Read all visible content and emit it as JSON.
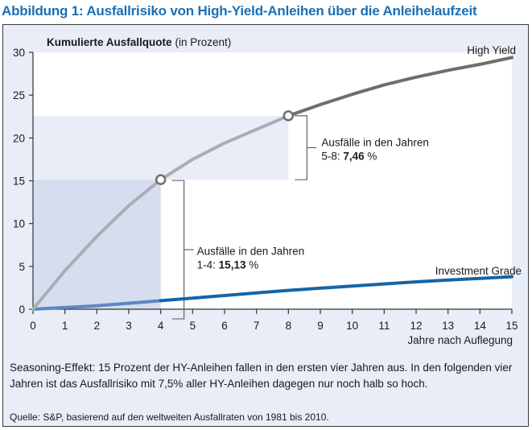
{
  "figure": {
    "title": "Abbildung 1: Ausfallrisiko von High-Yield-Anleihen über die Anleihelaufzeit",
    "caption": "Seasoning-Effekt: 15 Prozent der HY-Anleihen fallen in den ersten vier Jahren aus. In den folgenden vier Jahren ist das Ausfallrisiko mit 7,5% aller HY-Anleihen dagegen nur noch halb so hoch.",
    "source": "Quelle: S&P, basierend auf den weltweiten Ausfallraten von 1981 bis 2010."
  },
  "chart_data": {
    "type": "line",
    "title": "Kumulierte Ausfallquote",
    "title_suffix": "(in Prozent)",
    "xlabel": "Jahre nach Auflegung",
    "ylabel": "Kumulierte Ausfallquote (in Prozent)",
    "x": [
      0,
      1,
      2,
      3,
      4,
      5,
      6,
      7,
      8,
      9,
      10,
      11,
      12,
      13,
      14,
      15
    ],
    "x_ticks": [
      "0",
      "1",
      "2",
      "3",
      "4",
      "5",
      "6",
      "7",
      "8",
      "9",
      "10",
      "11",
      "12",
      "13",
      "14",
      "15"
    ],
    "y_ticks": [
      "0",
      "5",
      "10",
      "15",
      "20",
      "25",
      "30"
    ],
    "xlim": [
      0,
      15
    ],
    "ylim": [
      0,
      30
    ],
    "grid": false,
    "series": [
      {
        "name": "High Yield",
        "color": "#6e6e6e",
        "color_highlight": "#a9adb5",
        "values": [
          0,
          4.5,
          8.5,
          12.1,
          15.13,
          17.5,
          19.4,
          21.0,
          22.59,
          23.9,
          25.1,
          26.2,
          27.1,
          27.9,
          28.6,
          29.4
        ]
      },
      {
        "name": "Investment Grade",
        "color": "#1565a8",
        "color_highlight": "#5b86c4",
        "values": [
          0,
          0.2,
          0.4,
          0.7,
          1.0,
          1.3,
          1.6,
          1.9,
          2.2,
          2.45,
          2.7,
          2.95,
          3.2,
          3.4,
          3.6,
          3.8
        ]
      }
    ],
    "annotations": [
      {
        "label": "Ausfälle in den Jahren",
        "range": "1-4:",
        "value": "15,13",
        "unit": "%",
        "x_from": 0,
        "x_to": 4,
        "y_from": 0,
        "y_to": 15.13
      },
      {
        "label": "Ausfälle in den Jahren",
        "range": "5-8:",
        "value": "7,46",
        "unit": "%",
        "x_from": 4,
        "x_to": 8,
        "y_from": 15.13,
        "y_to": 22.59
      }
    ],
    "markers": [
      {
        "x": 4,
        "y": 15.13
      },
      {
        "x": 8,
        "y": 22.59
      }
    ],
    "colors": {
      "frame_bg": "#e8edf7",
      "plot_bg": "#ffffff",
      "shade_1_4": "#d5ddee",
      "shade_5_8": "#e8edf7",
      "title": "#1b6fb3"
    }
  }
}
